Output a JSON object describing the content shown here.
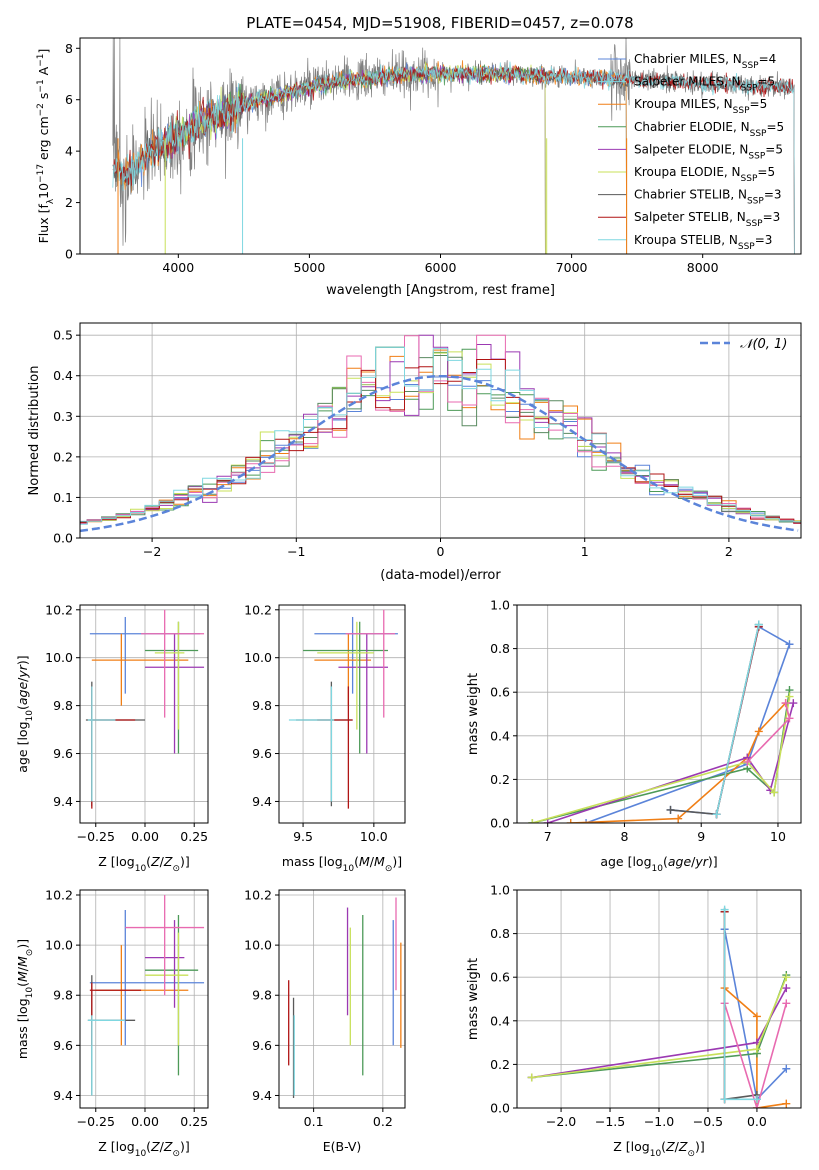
{
  "title": "PLATE=0454, MJD=51908, FIBERID=0457, z=0.078",
  "colors": {
    "blue": "#5b84d9",
    "orange": "#f07f16",
    "dkgreen": "#4d9a58",
    "purple": "#9b39b2",
    "yellowgreen": "#c8e05a",
    "sage": "#5a8a60",
    "pink": "#e86ab0",
    "dkred": "#b01414",
    "cyan": "#7fd7e0",
    "gray": "#808080"
  },
  "chart_data": [
    {
      "id": "spectrum",
      "type": "line",
      "xlabel": "wavelength [Angstrom, rest frame]",
      "ylabel": "Flux [f_λ10^-17 erg cm^-2 s^-1 A^-1]",
      "xlim": [
        3250,
        8750
      ],
      "ylim": [
        0,
        8.4
      ],
      "xticks": [
        4000,
        5000,
        6000,
        7000,
        8000
      ],
      "yticks": [
        0,
        2,
        4,
        6,
        8
      ],
      "grid": false,
      "legend": "upper right",
      "observed_color": "#808080",
      "model_envelope": {
        "x": [
          3500,
          3600,
          3700,
          3800,
          3900,
          4000,
          4200,
          4400,
          4600,
          4800,
          5000,
          5200,
          5400,
          5600,
          5800,
          6000,
          6200,
          6400,
          6600,
          6800,
          7000,
          7200,
          7400,
          7600,
          7800,
          8000,
          8200,
          8400,
          8600
        ],
        "y": [
          3.3,
          3.0,
          3.5,
          4.0,
          4.3,
          4.6,
          5.2,
          5.6,
          6.0,
          6.2,
          6.5,
          6.7,
          6.8,
          6.9,
          7.0,
          7.0,
          7.0,
          7.0,
          7.0,
          6.9,
          6.9,
          6.85,
          6.8,
          6.75,
          6.7,
          6.6,
          6.6,
          6.5,
          6.5
        ]
      },
      "series": [
        {
          "name": "Chabrier MILES",
          "nssp": "4",
          "color": "#5b84d9",
          "xrange": [
            3540,
            7420
          ]
        },
        {
          "name": "Salpeter MILES",
          "nssp": "5",
          "color": "#7fd7e0",
          "xrange": [
            3540,
            7420
          ]
        },
        {
          "name": "Kroupa MILES",
          "nssp": "5",
          "color": "#f07f16",
          "xrange": [
            3540,
            7420
          ]
        },
        {
          "name": "Chabrier ELODIE",
          "nssp": "5",
          "color": "#4d9a58",
          "xrange": [
            3900,
            6800
          ]
        },
        {
          "name": "Salpeter ELODIE",
          "nssp": "5",
          "color": "#9b39b2",
          "xrange": [
            3900,
            6800
          ]
        },
        {
          "name": "Kroupa ELODIE",
          "nssp": "5",
          "color": "#c8e05a",
          "xrange": [
            3900,
            6800
          ]
        },
        {
          "name": "Chabrier STELIB",
          "nssp": "3",
          "color": "#5a5a5a",
          "xrange": [
            3500,
            8700
          ]
        },
        {
          "name": "Salpeter STELIB",
          "nssp": "3",
          "color": "#b01414",
          "xrange": [
            3500,
            8700
          ]
        },
        {
          "name": "Kroupa STELIB",
          "nssp": "3",
          "color": "#7fd7e0",
          "xrange": [
            3500,
            8700
          ]
        }
      ]
    },
    {
      "id": "residuals",
      "type": "line",
      "xlabel": "(data-model)/error",
      "ylabel": "Normed distribution",
      "xlim": [
        -2.5,
        2.5
      ],
      "ylim": [
        0,
        0.53
      ],
      "xticks": [
        -2,
        -1,
        0,
        1,
        2
      ],
      "yticks": [
        0.0,
        0.1,
        0.2,
        0.3,
        0.4,
        0.5
      ],
      "grid": true,
      "legend": "upper right",
      "reference": {
        "name": "𝒩(0, 1)",
        "color": "#5b84d9",
        "style": "dashed"
      },
      "hist_colors": [
        "#5b84d9",
        "#f07f16",
        "#4d9a58",
        "#9b39b2",
        "#c8e05a",
        "#5a8a60",
        "#e86ab0",
        "#b01414",
        "#7fd7e0"
      ]
    },
    {
      "id": "age-vs-Z",
      "type": "scatter",
      "xlabel": "Z [log10(Z/Z☉)]",
      "ylabel": "age [log10(age/yr)]",
      "xlim": [
        -0.33,
        0.32
      ],
      "ylim": [
        9.31,
        10.22
      ],
      "xticks": [
        -0.25,
        0.0,
        0.25
      ],
      "yticks": [
        9.4,
        9.6,
        9.8,
        10.0,
        10.2
      ],
      "grid": true,
      "points": [
        {
          "c": "#5b84d9",
          "x": -0.1,
          "xe": [
            -0.28,
            0.28
          ],
          "y": 10.1,
          "ye": [
            9.85,
            10.17
          ]
        },
        {
          "c": "#f07f16",
          "x": -0.12,
          "xe": [
            -0.27,
            0.22
          ],
          "y": 9.99,
          "ye": [
            9.8,
            10.1
          ]
        },
        {
          "c": "#4d9a58",
          "x": 0.17,
          "xe": [
            0.0,
            0.27
          ],
          "y": 10.03,
          "ye": [
            9.6,
            10.15
          ]
        },
        {
          "c": "#9b39b2",
          "x": 0.15,
          "xe": [
            0.0,
            0.3
          ],
          "y": 9.96,
          "ye": [
            9.6,
            10.1
          ]
        },
        {
          "c": "#c8e05a",
          "x": 0.17,
          "xe": [
            0.05,
            0.2
          ],
          "y": 10.02,
          "ye": [
            9.7,
            10.15
          ]
        },
        {
          "c": "#5a5a5a",
          "x": -0.27,
          "xe": [
            -0.3,
            0.0
          ],
          "y": 9.74,
          "ye": [
            9.38,
            9.9
          ]
        },
        {
          "c": "#e86ab0",
          "x": 0.1,
          "xe": [
            -0.02,
            0.3
          ],
          "y": 10.1,
          "ye": [
            9.75,
            10.2
          ]
        },
        {
          "c": "#b01414",
          "x": -0.27,
          "xe": [
            -0.28,
            -0.05
          ],
          "y": 9.74,
          "ye": [
            9.37,
            9.88
          ]
        },
        {
          "c": "#7fd7e0",
          "x": -0.27,
          "xe": [
            -0.29,
            -0.15
          ],
          "y": 9.74,
          "ye": [
            9.4,
            9.88
          ]
        }
      ]
    },
    {
      "id": "age-vs-mass",
      "type": "scatter",
      "xlabel": "mass [log10(M/M☉)]",
      "ylabel": "",
      "xlim": [
        9.33,
        10.22
      ],
      "ylim": [
        9.31,
        10.22
      ],
      "xticks": [
        9.5,
        10.0
      ],
      "yticks": [
        9.4,
        9.6,
        9.8,
        10.0,
        10.2
      ],
      "grid": true,
      "points": [
        {
          "c": "#5b84d9",
          "x": 9.85,
          "xe": [
            9.58,
            10.17
          ],
          "y": 10.1,
          "ye": [
            9.85,
            10.17
          ]
        },
        {
          "c": "#f07f16",
          "x": 9.82,
          "xe": [
            9.58,
            9.98
          ],
          "y": 9.99,
          "ye": [
            9.8,
            10.1
          ]
        },
        {
          "c": "#4d9a58",
          "x": 9.9,
          "xe": [
            9.5,
            10.1
          ],
          "y": 10.03,
          "ye": [
            9.6,
            10.15
          ]
        },
        {
          "c": "#9b39b2",
          "x": 9.95,
          "xe": [
            9.75,
            10.1
          ],
          "y": 9.96,
          "ye": [
            9.6,
            10.1
          ]
        },
        {
          "c": "#c8e05a",
          "x": 9.88,
          "xe": [
            9.6,
            10.0
          ],
          "y": 10.02,
          "ye": [
            9.7,
            10.15
          ]
        },
        {
          "c": "#5a5a5a",
          "x": 9.7,
          "xe": [
            9.45,
            9.85
          ],
          "y": 9.74,
          "ye": [
            9.38,
            9.9
          ]
        },
        {
          "c": "#e86ab0",
          "x": 10.07,
          "xe": [
            9.8,
            10.15
          ],
          "y": 10.1,
          "ye": [
            9.75,
            10.2
          ]
        },
        {
          "c": "#b01414",
          "x": 9.82,
          "xe": [
            9.6,
            9.85
          ],
          "y": 9.74,
          "ye": [
            9.37,
            9.88
          ]
        },
        {
          "c": "#7fd7e0",
          "x": 9.7,
          "xe": [
            9.4,
            9.72
          ],
          "y": 9.74,
          "ye": [
            9.4,
            9.88
          ]
        }
      ]
    },
    {
      "id": "weight-vs-age",
      "type": "line",
      "xlabel": "age [log10(age/yr)]",
      "ylabel": "mass weight",
      "xlim": [
        6.6,
        10.3
      ],
      "ylim": [
        0,
        1.0
      ],
      "xticks": [
        7,
        8,
        9,
        10
      ],
      "yticks": [
        0.0,
        0.2,
        0.4,
        0.6,
        0.8,
        1.0
      ],
      "grid": true,
      "series": [
        {
          "c": "#5b84d9",
          "pts": [
            [
              7.5,
              0.0
            ],
            [
              9.6,
              0.27
            ],
            [
              10.15,
              0.82
            ],
            [
              9.75,
              0.9
            ],
            [
              9.2,
              0.04
            ],
            [
              8.6,
              0.06
            ]
          ]
        },
        {
          "c": "#f07f16",
          "pts": [
            [
              7.3,
              0.0
            ],
            [
              8.7,
              0.02
            ],
            [
              9.6,
              0.3
            ],
            [
              9.75,
              0.42
            ],
            [
              10.1,
              0.55
            ]
          ]
        },
        {
          "c": "#4d9a58",
          "pts": [
            [
              6.8,
              0.0
            ],
            [
              9.6,
              0.25
            ],
            [
              9.95,
              0.14
            ],
            [
              10.15,
              0.61
            ]
          ]
        },
        {
          "c": "#9b39b2",
          "pts": [
            [
              7.0,
              0.0
            ],
            [
              9.6,
              0.3
            ],
            [
              9.9,
              0.15
            ],
            [
              10.2,
              0.55
            ]
          ]
        },
        {
          "c": "#c8e05a",
          "pts": [
            [
              6.8,
              0.0
            ],
            [
              9.6,
              0.28
            ],
            [
              9.95,
              0.14
            ],
            [
              10.15,
              0.58
            ]
          ]
        },
        {
          "c": "#5a5a5a",
          "pts": [
            [
              8.6,
              0.06
            ],
            [
              9.2,
              0.04
            ],
            [
              9.75,
              0.91
            ]
          ]
        },
        {
          "c": "#e86ab0",
          "pts": [
            [
              9.6,
              0.28
            ],
            [
              10.15,
              0.48
            ],
            [
              10.1,
              0.55
            ]
          ]
        },
        {
          "c": "#b01414",
          "pts": [
            [
              9.2,
              0.04
            ],
            [
              9.75,
              0.9
            ]
          ]
        },
        {
          "c": "#7fd7e0",
          "pts": [
            [
              9.2,
              0.04
            ],
            [
              9.75,
              0.91
            ]
          ]
        }
      ]
    },
    {
      "id": "mass-vs-Z",
      "type": "scatter",
      "xlabel": "Z [log10(Z/Z☉)]",
      "ylabel": "mass [log10(M/M☉)]",
      "xlim": [
        -0.33,
        0.32
      ],
      "ylim": [
        9.35,
        10.22
      ],
      "xticks": [
        -0.25,
        0.0,
        0.25
      ],
      "yticks": [
        9.4,
        9.6,
        9.8,
        10.0,
        10.2
      ],
      "grid": true,
      "points": [
        {
          "c": "#5b84d9",
          "x": -0.1,
          "xe": [
            -0.28,
            0.3
          ],
          "y": 9.85,
          "ye": [
            9.6,
            10.14
          ]
        },
        {
          "c": "#f07f16",
          "x": -0.12,
          "xe": [
            -0.25,
            0.22
          ],
          "y": 9.82,
          "ye": [
            9.6,
            10.0
          ]
        },
        {
          "c": "#4d9a58",
          "x": 0.17,
          "xe": [
            0.0,
            0.27
          ],
          "y": 9.9,
          "ye": [
            9.48,
            10.12
          ]
        },
        {
          "c": "#9b39b2",
          "x": 0.15,
          "xe": [
            0.0,
            0.2
          ],
          "y": 9.95,
          "ye": [
            9.75,
            10.1
          ]
        },
        {
          "c": "#c8e05a",
          "x": 0.17,
          "xe": [
            0.0,
            0.22
          ],
          "y": 9.88,
          "ye": [
            9.6,
            10.05
          ]
        },
        {
          "c": "#5a5a5a",
          "x": -0.27,
          "xe": [
            -0.29,
            -0.05
          ],
          "y": 9.7,
          "ye": [
            9.4,
            9.88
          ]
        },
        {
          "c": "#e86ab0",
          "x": 0.1,
          "xe": [
            -0.1,
            0.3
          ],
          "y": 10.07,
          "ye": [
            9.8,
            10.2
          ]
        },
        {
          "c": "#b01414",
          "x": -0.27,
          "xe": [
            -0.28,
            -0.02
          ],
          "y": 9.82,
          "ye": [
            9.6,
            9.85
          ]
        },
        {
          "c": "#7fd7e0",
          "x": -0.27,
          "xe": [
            -0.29,
            -0.1
          ],
          "y": 9.7,
          "ye": [
            9.4,
            9.72
          ]
        }
      ]
    },
    {
      "id": "mass-vs-EBV",
      "type": "scatter",
      "xlabel": "E(B-V)",
      "ylabel": "",
      "xlim": [
        0.05,
        0.232
      ],
      "ylim": [
        9.35,
        10.22
      ],
      "xticks": [
        0.1,
        0.2
      ],
      "yticks": [
        9.4,
        9.6,
        9.8,
        10.0,
        10.2
      ],
      "grid": true,
      "points": [
        {
          "c": "#b01414",
          "x": 0.064,
          "ye": [
            9.52,
            9.86
          ]
        },
        {
          "c": "#5a5a5a",
          "x": 0.071,
          "ye": [
            9.39,
            9.79
          ]
        },
        {
          "c": "#7fd7e0",
          "x": 0.072,
          "ye": [
            9.4,
            9.72
          ]
        },
        {
          "c": "#9b39b2",
          "x": 0.149,
          "ye": [
            9.72,
            10.15
          ]
        },
        {
          "c": "#c8e05a",
          "x": 0.153,
          "ye": [
            9.6,
            10.07
          ]
        },
        {
          "c": "#4d9a58",
          "x": 0.171,
          "ye": [
            9.48,
            10.12
          ]
        },
        {
          "c": "#e86ab0",
          "x": 0.219,
          "ye": [
            9.82,
            10.19
          ]
        },
        {
          "c": "#5b84d9",
          "x": 0.215,
          "ye": [
            9.6,
            10.1
          ]
        },
        {
          "c": "#f07f16",
          "x": 0.226,
          "ye": [
            9.59,
            10.01
          ]
        }
      ]
    },
    {
      "id": "weight-vs-Z",
      "type": "line",
      "xlabel": "Z [log10(Z/Z☉)]",
      "ylabel": "mass weight",
      "xlim": [
        -2.45,
        0.45
      ],
      "ylim": [
        0,
        1.0
      ],
      "xticks": [
        -2.0,
        -1.5,
        -1.0,
        -0.5,
        0.0
      ],
      "yticks": [
        0.0,
        0.2,
        0.4,
        0.6,
        0.8,
        1.0
      ],
      "grid": true,
      "series": [
        {
          "c": "#5b84d9",
          "pts": [
            [
              -0.33,
              0.82
            ],
            [
              0.0,
              0.04
            ],
            [
              0.3,
              0.18
            ]
          ]
        },
        {
          "c": "#f07f16",
          "pts": [
            [
              -0.33,
              0.55
            ],
            [
              0.0,
              0.42
            ],
            [
              0.0,
              0.0
            ],
            [
              0.3,
              0.02
            ]
          ]
        },
        {
          "c": "#4d9a58",
          "pts": [
            [
              -2.3,
              0.14
            ],
            [
              0.0,
              0.25
            ],
            [
              0.3,
              0.61
            ]
          ]
        },
        {
          "c": "#9b39b2",
          "pts": [
            [
              -2.3,
              0.14
            ],
            [
              0.0,
              0.3
            ],
            [
              0.3,
              0.55
            ]
          ]
        },
        {
          "c": "#c8e05a",
          "pts": [
            [
              -2.3,
              0.14
            ],
            [
              0.0,
              0.27
            ],
            [
              0.3,
              0.6
            ]
          ]
        },
        {
          "c": "#5a5a5a",
          "pts": [
            [
              -0.33,
              0.9
            ],
            [
              -0.33,
              0.04
            ],
            [
              0.0,
              0.06
            ]
          ]
        },
        {
          "c": "#e86ab0",
          "pts": [
            [
              -0.33,
              0.48
            ],
            [
              0.0,
              0.0
            ],
            [
              0.3,
              0.48
            ]
          ]
        },
        {
          "c": "#b01414",
          "pts": [
            [
              -0.33,
              0.9
            ],
            [
              -0.33,
              0.04
            ]
          ]
        },
        {
          "c": "#7fd7e0",
          "pts": [
            [
              -0.33,
              0.91
            ],
            [
              -0.33,
              0.04
            ],
            [
              0.0,
              0.04
            ]
          ]
        }
      ]
    }
  ]
}
